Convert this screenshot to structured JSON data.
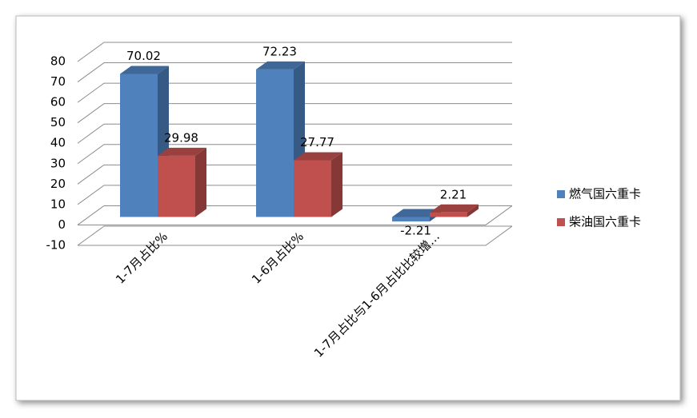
{
  "chart_data": {
    "type": "bar3d",
    "categories": [
      "1-7月占比%",
      "1-6月占比%",
      "1-7月占比与1-6月占比比较增…"
    ],
    "series": [
      {
        "name": "燃气国六重卡",
        "color": "#4f81bd",
        "values": [
          70.02,
          72.23,
          -2.21
        ]
      },
      {
        "name": "柴油国六重卡",
        "color": "#c0504d",
        "values": [
          29.98,
          27.77,
          2.21
        ]
      }
    ],
    "ylim": [
      -10,
      80
    ],
    "yticks": [
      -10,
      0,
      10,
      20,
      30,
      40,
      50,
      60,
      70,
      80
    ],
    "grid": true,
    "legend": "right"
  }
}
